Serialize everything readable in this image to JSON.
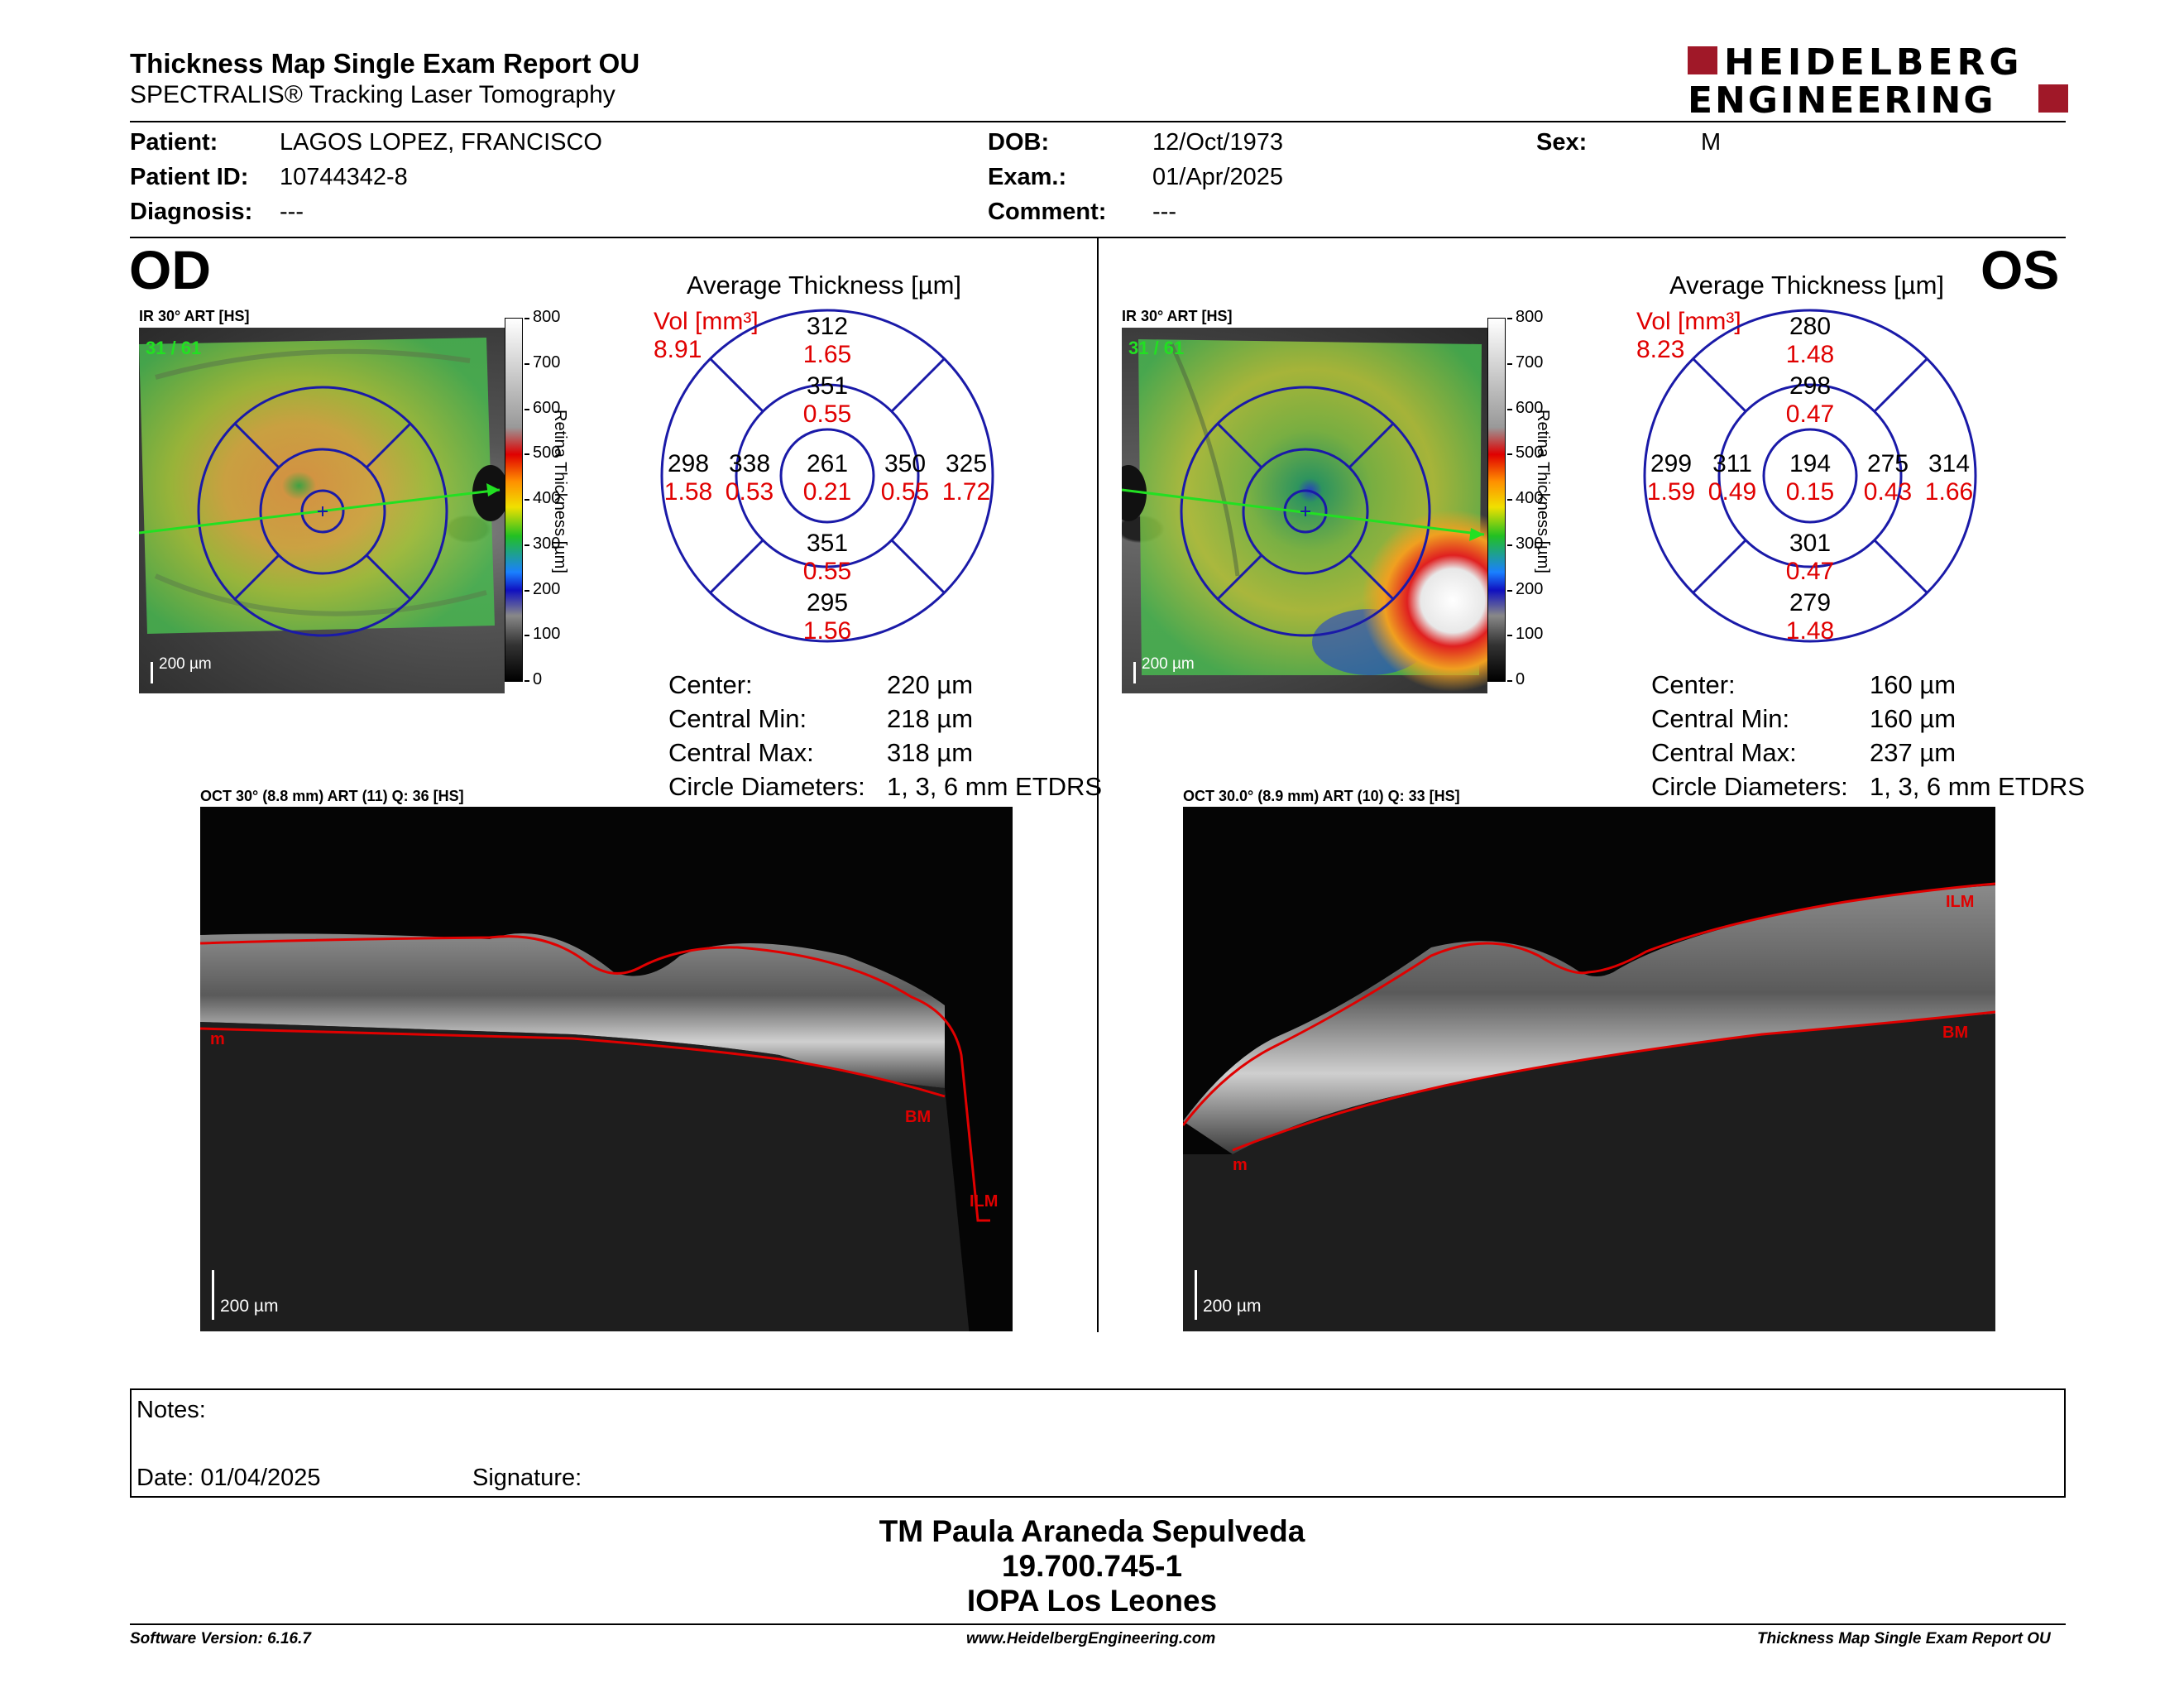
{
  "report": {
    "title": "Thickness Map Single Exam Report OU",
    "subtitle": "SPECTRALIS® Tracking Laser Tomography",
    "logo_line1": "HEIDELBERG",
    "logo_line2": "ENGINEERING"
  },
  "patient": {
    "patient_label": "Patient:",
    "patient_value": "LAGOS LOPEZ, FRANCISCO",
    "id_label": "Patient ID:",
    "id_value": "10744342-8",
    "diagnosis_label": "Diagnosis:",
    "diagnosis_value": "---",
    "dob_label": "DOB:",
    "dob_value": "12/Oct/1973",
    "exam_label": "Exam.:",
    "exam_value": "01/Apr/2025",
    "comment_label": "Comment:",
    "comment_value": "---",
    "sex_label": "Sex:",
    "sex_value": "M"
  },
  "colorbar_ticks": [
    "800",
    "700",
    "600",
    "500",
    "400",
    "300",
    "200",
    "100",
    "0"
  ],
  "colorbar_title": "Retina  Thickness [µm]",
  "od": {
    "eye": "OD",
    "ir_label": "IR 30° ART [HS]",
    "scan_index": "31 / 61",
    "scale": "200 µm",
    "avg_title": "Average Thickness [µm]",
    "vol_label": "Vol [mm³]",
    "vol_value": "8.91",
    "grid": {
      "center": {
        "t": "261",
        "v": "0.21"
      },
      "inner_top": {
        "t": "351",
        "v": "0.55"
      },
      "inner_bottom": {
        "t": "351",
        "v": "0.55"
      },
      "inner_left": {
        "t": "338",
        "v": "0.53"
      },
      "inner_right": {
        "t": "350",
        "v": "0.55"
      },
      "outer_top": {
        "t": "312",
        "v": "1.65"
      },
      "outer_bottom": {
        "t": "295",
        "v": "1.56"
      },
      "outer_left": {
        "t": "298",
        "v": "1.58"
      },
      "outer_right": {
        "t": "325",
        "v": "1.72"
      }
    },
    "stats": {
      "center_label": "Center:",
      "center_value": "220 µm",
      "min_label": "Central Min:",
      "min_value": "218 µm",
      "max_label": "Central Max:",
      "max_value": "318 µm",
      "diam_label": "Circle Diameters:",
      "diam_value": "1, 3, 6 mm ETDRS"
    },
    "oct_label": "OCT 30° (8.8 mm) ART (11) Q: 36 [HS]",
    "oct_scale": "200 µm",
    "layer_ilm": "ILM",
    "layer_bm": "BM",
    "layer_m": "m"
  },
  "os": {
    "eye": "OS",
    "ir_label": "IR 30° ART [HS]",
    "scan_index": "31 / 61",
    "scale": "200 µm",
    "avg_title": "Average Thickness [µm]",
    "vol_label": "Vol [mm³]",
    "vol_value": "8.23",
    "grid": {
      "center": {
        "t": "194",
        "v": "0.15"
      },
      "inner_top": {
        "t": "298",
        "v": "0.47"
      },
      "inner_bottom": {
        "t": "301",
        "v": "0.47"
      },
      "inner_left": {
        "t": "311",
        "v": "0.49"
      },
      "inner_right": {
        "t": "275",
        "v": "0.43"
      },
      "outer_top": {
        "t": "280",
        "v": "1.48"
      },
      "outer_bottom": {
        "t": "279",
        "v": "1.48"
      },
      "outer_left": {
        "t": "299",
        "v": "1.59"
      },
      "outer_right": {
        "t": "314",
        "v": "1.66"
      }
    },
    "stats": {
      "center_label": "Center:",
      "center_value": "160 µm",
      "min_label": "Central Min:",
      "min_value": "160 µm",
      "max_label": "Central Max:",
      "max_value": "237 µm",
      "diam_label": "Circle Diameters:",
      "diam_value": "1, 3, 6 mm ETDRS"
    },
    "oct_label": "OCT 30.0° (8.9 mm) ART (10) Q: 33 [HS]",
    "oct_scale": "200 µm",
    "layer_ilm": "ILM",
    "layer_bm": "BM",
    "layer_m": "m"
  },
  "notes": {
    "notes_label": "Notes:",
    "date_label": "Date: 01/04/2025",
    "signature_label": "Signature:"
  },
  "stamp": {
    "line1": "TM Paula Araneda Sepulveda",
    "line2": "19.700.745-1",
    "line3": "IOPA Los Leones"
  },
  "footer": {
    "software": "Software Version: 6.16.7",
    "website": "www.HeidelbergEngineering.com",
    "report_name": "Thickness Map Single Exam Report OU"
  },
  "colors": {
    "accent_red": "#e00000",
    "grid_blue": "#1a1aa8",
    "logo_red": "#a01828"
  }
}
